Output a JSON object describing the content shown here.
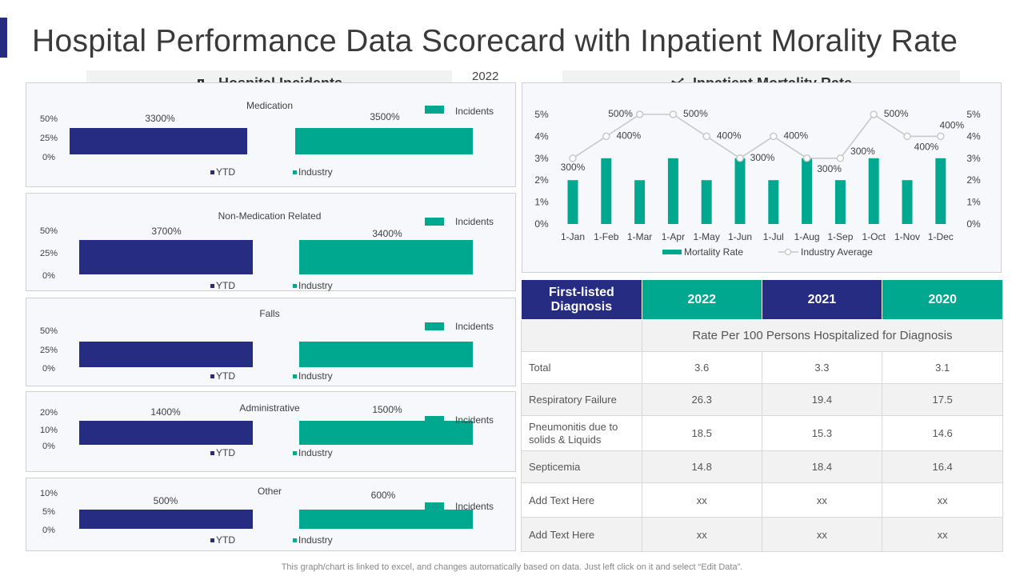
{
  "page": {
    "title": "Hospital Performance Data Scorecard with Inpatient Morality Rate",
    "year": "2022",
    "footnote": "This graph/chart is linked to excel, and changes automatically based on data. Just left click on it and select “Edit Data”."
  },
  "incidents_header": {
    "label": "Hospital Incidents",
    "icon": "hospital-building-icon"
  },
  "mortality_header": {
    "label": "Inpatient Mortality Rate",
    "icon": "analytics-icon"
  },
  "colors": {
    "navy": "#262C82",
    "teal": "#00A88F",
    "gray_line": "#C8C8C8"
  },
  "chart_data": [
    {
      "type": "bar",
      "title": "Medication",
      "categories": [
        "YTD",
        "Industry"
      ],
      "values": [
        3300,
        3500
      ],
      "data_labels": [
        "3300%",
        "3500%"
      ],
      "yticks": [
        "0%",
        "25%",
        "50%"
      ],
      "legend": [
        "YTD",
        "Industry"
      ],
      "legend_right": "Incidents"
    },
    {
      "type": "bar",
      "title": "Non-Medication  Related",
      "categories": [
        "YTD",
        "Industry"
      ],
      "values": [
        3700,
        3400
      ],
      "data_labels": [
        "3700%",
        "3400%"
      ],
      "yticks": [
        "0%",
        "25%",
        "50%"
      ],
      "legend": [
        "YTD",
        "Industry"
      ],
      "legend_right": "Incidents"
    },
    {
      "type": "bar",
      "title": "Falls",
      "categories": [
        "YTD",
        "Industry"
      ],
      "values": [
        null,
        null
      ],
      "data_labels": [
        "",
        ""
      ],
      "yticks": [
        "0%",
        "25%",
        "50%"
      ],
      "legend": [
        "YTD",
        "Industry"
      ],
      "legend_right": "Incidents"
    },
    {
      "type": "bar",
      "title": "Administrative",
      "categories": [
        "YTD",
        "Industry"
      ],
      "values": [
        1400,
        1500
      ],
      "data_labels": [
        "1400%",
        "1500%"
      ],
      "yticks": [
        "0%",
        "10%",
        "20%"
      ],
      "legend": [
        "YTD",
        "Industry"
      ],
      "legend_right": "Incidents"
    },
    {
      "type": "bar",
      "title": "Other",
      "categories": [
        "YTD",
        "Industry"
      ],
      "values": [
        500,
        600
      ],
      "data_labels": [
        "500%",
        "600%"
      ],
      "yticks": [
        "0%",
        "5%",
        "10%"
      ],
      "legend": [
        "YTD",
        "Industry"
      ],
      "legend_right": "Incidents"
    },
    {
      "type": "bar+line",
      "title": "Inpatient Mortality Rate",
      "categories": [
        "1-Jan",
        "1-Feb",
        "1-Mar",
        "1-Apr",
        "1-May",
        "1-Jun",
        "1-Jul",
        "1-Aug",
        "1-Sep",
        "1-Oct",
        "1-Nov",
        "1-Dec"
      ],
      "series": [
        {
          "name": "Mortality Rate",
          "kind": "bar",
          "values": [
            2,
            3,
            2,
            3,
            2,
            3,
            2,
            3,
            2,
            3,
            2,
            3
          ]
        },
        {
          "name": "Industry Average",
          "kind": "line",
          "values": [
            3,
            4,
            5,
            5,
            4,
            3,
            4,
            3,
            3,
            5,
            4,
            4
          ],
          "data_labels": [
            "300%",
            "400%",
            "500%",
            "500%",
            "400%",
            "300%",
            "400%",
            "300%",
            "300%",
            "500%",
            "400%",
            "400%"
          ]
        }
      ],
      "yticks_left": [
        "0%",
        "1%",
        "2%",
        "3%",
        "4%",
        "5%"
      ],
      "yticks_right": [
        "0%",
        "1%",
        "2%",
        "3%",
        "4%",
        "5%"
      ],
      "ylim": [
        0,
        5
      ]
    }
  ],
  "diagnosis_table": {
    "header": [
      "First-listed Diagnosis",
      "2022",
      "2021",
      "2020"
    ],
    "subheader": "Rate Per 100 Persons Hospitalized for Diagnosis",
    "rows": [
      {
        "label": "Total",
        "values": [
          "3.6",
          "3.3",
          "3.1"
        ]
      },
      {
        "label": "Respiratory  Failure",
        "values": [
          "26.3",
          "19.4",
          "17.5"
        ]
      },
      {
        "label": "Pneumonitis due to solids & Liquids",
        "values": [
          "18.5",
          "15.3",
          "14.6"
        ]
      },
      {
        "label": "Septicemia",
        "values": [
          "14.8",
          "18.4",
          "16.4"
        ]
      },
      {
        "label": "Add Text Here",
        "values": [
          "xx",
          "xx",
          "xx"
        ]
      },
      {
        "label": "Add Text Here",
        "values": [
          "xx",
          "xx",
          "xx"
        ]
      }
    ]
  }
}
